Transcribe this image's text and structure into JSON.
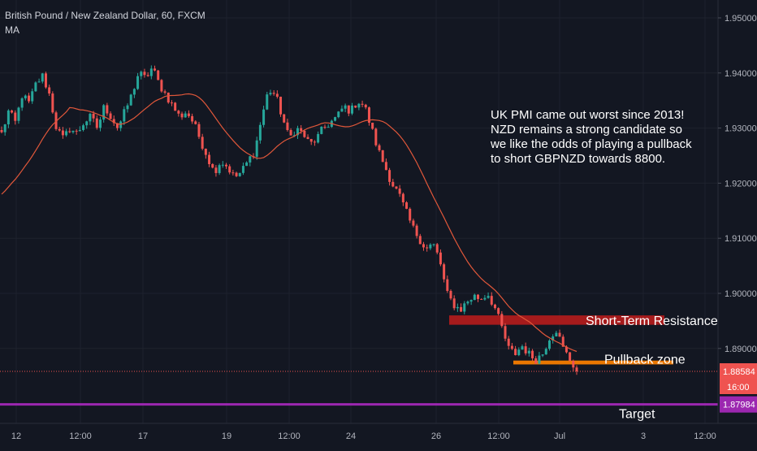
{
  "header": {
    "symbol_title": "British Pound / New Zealand Dollar, 60, FXCM",
    "indicator": "MA"
  },
  "annotation": {
    "lines": [
      "UK PMI came out worst since 2013!",
      "NZD remains a strong candidate so",
      "we like the odds of playing a pullback",
      "to short GBPNZD towards 8800."
    ]
  },
  "colors": {
    "background": "#131722",
    "grid": "#1e222d",
    "up_candle": "#26a69a",
    "down_candle": "#ef5350",
    "moving_average": "#e0573a",
    "resistance_zone": "#b71c1c",
    "pullback_zone": "#f57c00",
    "target_line": "#9c27b0",
    "price_label": "#ef5350"
  },
  "chart_data": {
    "type": "candlestick",
    "instrument": "British Pound / New Zealand Dollar",
    "interval": "60",
    "source": "FXCM",
    "indicators": [
      "MA"
    ],
    "ylim": [
      1.875,
      1.955
    ],
    "y_ticks": [
      "1.95000",
      "1.94000",
      "1.93000",
      "1.92000",
      "1.91000",
      "1.90000",
      "1.89000"
    ],
    "x_tick_labels": [
      "12",
      "12:00",
      "17",
      "12:00",
      "19",
      "12:00",
      "24",
      "26",
      "12:00",
      "Jul",
      "3",
      "12:00"
    ],
    "last_price": {
      "value": 1.88584,
      "label": "1.88584",
      "countdown": "16:00"
    },
    "target": {
      "value": 1.87984,
      "label": "1.87984",
      "text": "Target"
    },
    "zones": [
      {
        "name": "Short-Term Resistance",
        "from": 1.8943,
        "to": 1.896
      },
      {
        "name": "Pullback zone",
        "from": 1.8871,
        "to": 1.8878
      }
    ],
    "close_path": [
      1.929,
      1.933,
      1.931,
      1.936,
      1.9345,
      1.938,
      1.9395,
      1.936,
      1.93,
      1.928,
      1.93,
      1.929,
      1.931,
      1.932,
      1.93,
      1.934,
      1.932,
      1.93,
      1.933,
      1.936,
      1.94,
      1.939,
      1.941,
      1.938,
      1.936,
      1.934,
      1.932,
      1.933,
      1.931,
      1.928,
      1.925,
      1.922,
      1.924,
      1.923,
      1.921,
      1.922,
      1.924,
      1.926,
      1.932,
      1.937,
      1.936,
      1.932,
      1.928,
      1.93,
      1.929,
      1.927,
      1.928,
      1.93,
      1.931,
      1.932,
      1.934,
      1.933,
      1.935,
      1.934,
      1.93,
      1.926,
      1.923,
      1.92,
      1.918,
      1.915,
      1.912,
      1.91,
      1.908,
      1.909,
      1.906,
      1.9,
      1.898,
      1.897,
      1.8985,
      1.8995,
      1.899,
      1.9,
      1.8975,
      1.894,
      1.89,
      1.889,
      1.8905,
      1.889,
      1.888,
      1.889,
      1.892,
      1.8935,
      1.89,
      1.888,
      1.886
    ]
  },
  "chart_labels": {
    "resistance_label": "Short-Term Resistance",
    "pullback_label": "Pullback zone",
    "countdown": "16:00"
  }
}
